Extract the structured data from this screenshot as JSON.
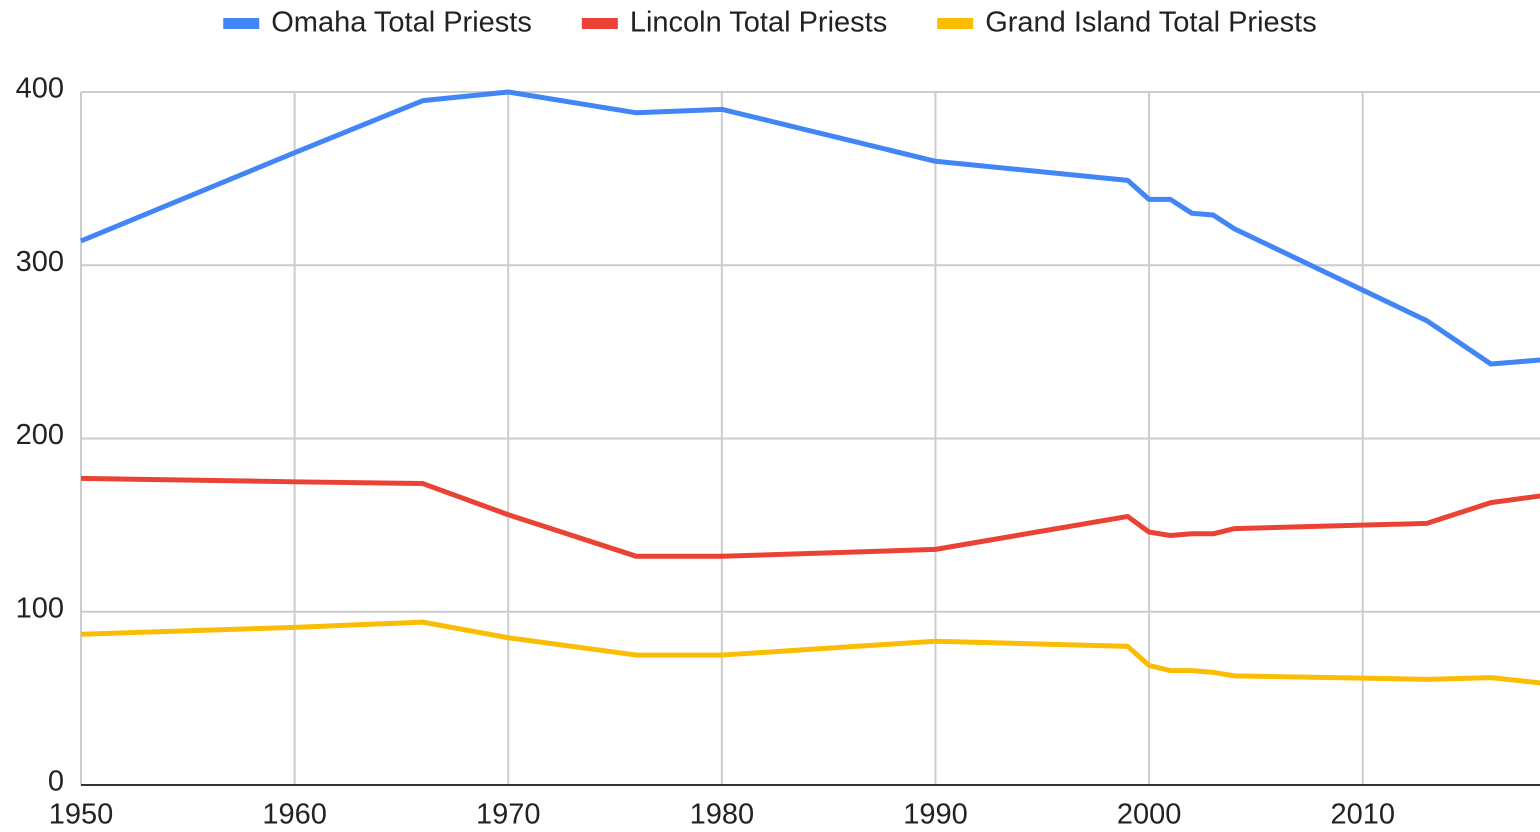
{
  "chart_data": {
    "type": "line",
    "x": [
      1950,
      1960,
      1966,
      1970,
      1976,
      1980,
      1990,
      1999,
      2000,
      2001,
      2002,
      2003,
      2004,
      2013,
      2016,
      2019
    ],
    "series": [
      {
        "name": "Omaha Total Priests",
        "color": "#4285f4",
        "values": [
          314,
          365,
          395,
          400,
          388,
          390,
          360,
          349,
          338,
          338,
          330,
          329,
          321,
          268,
          243,
          246
        ]
      },
      {
        "name": "Lincoln Total Priests",
        "color": "#ea4335",
        "values": [
          177,
          175,
          174,
          156,
          132,
          132,
          136,
          155,
          146,
          144,
          145,
          145,
          148,
          151,
          163,
          168
        ]
      },
      {
        "name": "Grand Island Total Priests",
        "color": "#fbbc04",
        "values": [
          87,
          91,
          94,
          85,
          75,
          75,
          83,
          80,
          69,
          66,
          66,
          65,
          63,
          61,
          62,
          58
        ]
      }
    ],
    "xlim": [
      1950,
      2018.3
    ],
    "xticks": [
      1950,
      1960,
      1970,
      1980,
      1990,
      2000,
      2010
    ],
    "ylim": [
      0,
      400
    ],
    "yticks": [
      0,
      100,
      200,
      300,
      400
    ],
    "grid": true,
    "legend": "top"
  }
}
